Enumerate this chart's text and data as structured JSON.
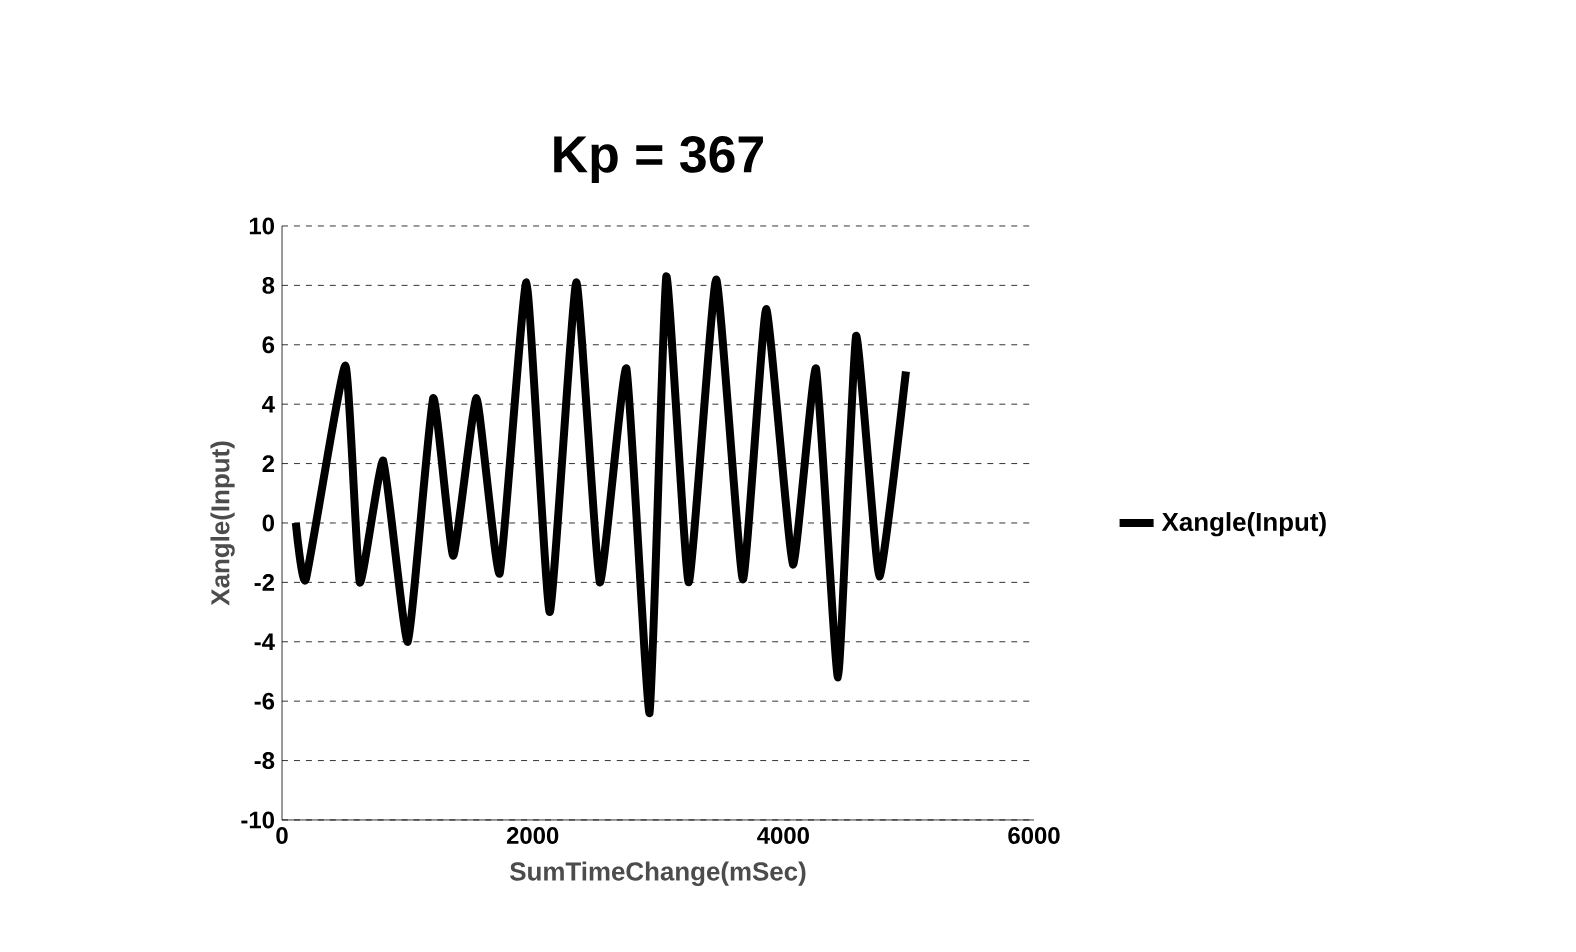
{
  "chart_data": {
    "type": "line",
    "title": "Kp = 367",
    "xlabel": "SumTimeChange(mSec)",
    "ylabel": "Xangle(Input)",
    "xlim": [
      0,
      6000
    ],
    "xticks": [
      0,
      2000,
      4000,
      6000
    ],
    "ylim": [
      -10,
      10
    ],
    "yticks": [
      -10,
      -8,
      -6,
      -4,
      -2,
      0,
      2,
      4,
      6,
      8,
      10
    ],
    "grid": "y",
    "legend": "right",
    "marker": "none",
    "line_style": "solid",
    "series": [
      {
        "name": "Xangle(Input)",
        "color": "#000000",
        "x": [
          110,
          190,
          505,
          620,
          808,
          1004,
          1206,
          1366,
          1552,
          1737,
          1950,
          2136,
          2348,
          2535,
          2748,
          2933,
          3066,
          3245,
          3464,
          3677,
          3863,
          4076,
          4261,
          4436,
          4580,
          4766,
          4978
        ],
        "values": [
          0,
          -1.9,
          5.3,
          -2,
          2.1,
          -4,
          4.2,
          -1.1,
          4.2,
          -1.7,
          8.1,
          -3,
          8.1,
          -2,
          5.2,
          -6.4,
          8.3,
          -2,
          8.2,
          -1.9,
          7.2,
          -1.4,
          5.2,
          -5.2,
          6.3,
          -1.8,
          5.1
        ]
      }
    ]
  }
}
